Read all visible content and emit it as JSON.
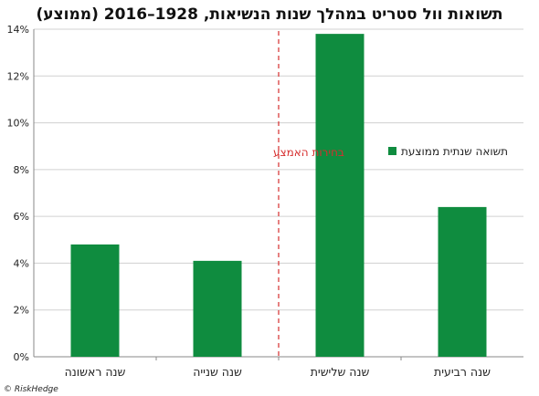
{
  "chart_data": {
    "type": "bar",
    "title": "תשואות וול סטריט במהלך שנות הנשיאות, 1928–2016 (ממוצע)",
    "categories": [
      "שנה ראשונה",
      "שנה שנייה",
      "שנה שלישית",
      "שנה רביעית"
    ],
    "series": [
      {
        "name": "תשואה שנתית ממוצעת",
        "values": [
          4.8,
          4.1,
          13.8,
          6.4
        ],
        "color": "#0f8c3f"
      }
    ],
    "ylim": [
      0,
      14
    ],
    "yticks": [
      "0%",
      "2%",
      "4%",
      "6%",
      "8%",
      "10%",
      "12%",
      "14%"
    ],
    "xlabel": "",
    "ylabel": "",
    "grid": true,
    "legend_position": "right",
    "annotation": {
      "text": "בחירות האמצע",
      "color": "#d62e2e",
      "between_categories": [
        1,
        2
      ]
    },
    "credit": "© RiskHedge"
  }
}
